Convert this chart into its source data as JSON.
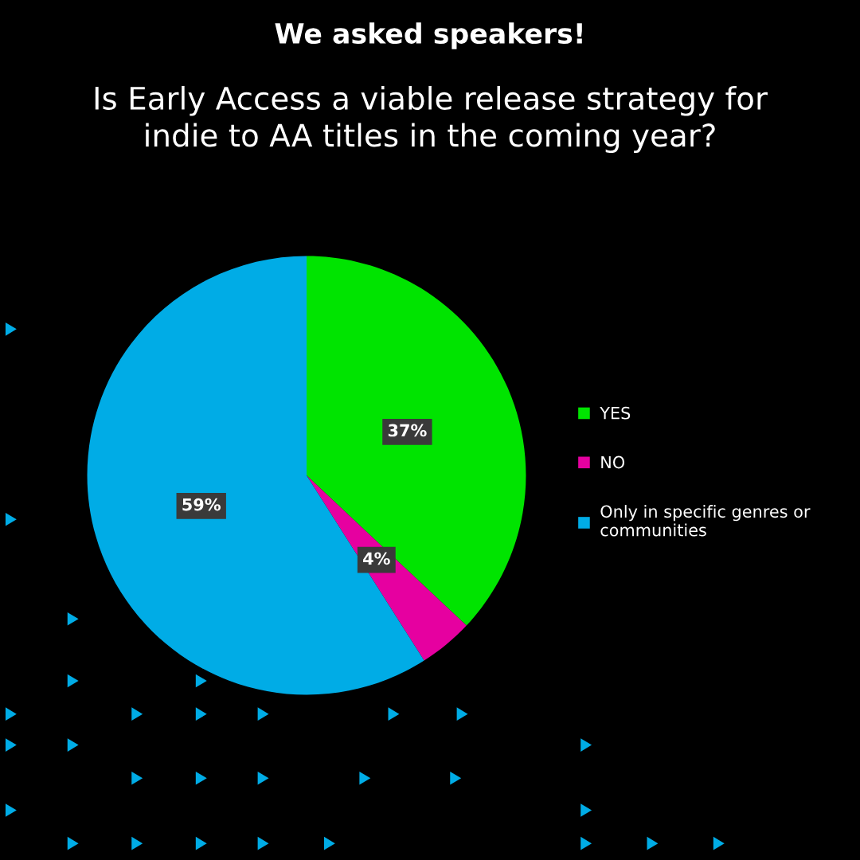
{
  "chart_data": {
    "type": "pie",
    "title": "We asked speakers!",
    "subtitle": "Is Early Access a viable release strategy for\nindie to AA titles in the coming year?",
    "categories": [
      "YES",
      "NO",
      "Only in specific genres or\ncommunities"
    ],
    "values": [
      37,
      4,
      59
    ],
    "colors": [
      "#00e400",
      "#e600a0",
      "#00ace6"
    ],
    "value_labels": [
      "37%",
      "4%",
      "59%"
    ],
    "legend": "right"
  }
}
